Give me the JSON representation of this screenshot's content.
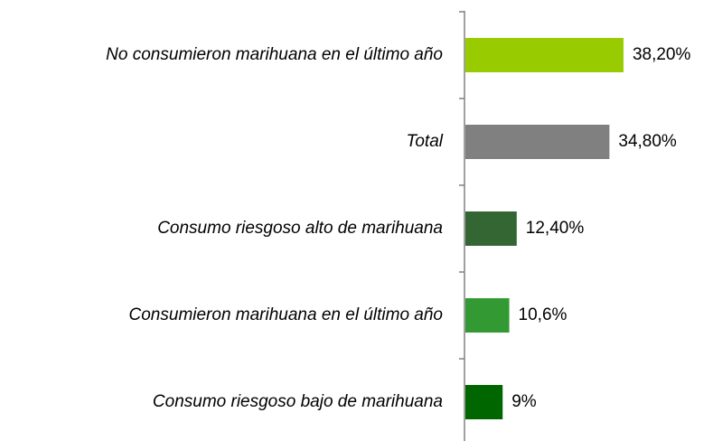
{
  "chart_data": {
    "type": "bar",
    "orientation": "horizontal",
    "categories": [
      "No consumieron marihuana en el último año",
      "Total",
      "Consumo riesgoso alto de marihuana",
      "Consumieron marihuana en el último año",
      "Consumo riesgoso bajo de marihuana"
    ],
    "values": [
      38.2,
      34.8,
      12.4,
      10.6,
      9
    ],
    "value_labels": [
      "38,20%",
      "34,80%",
      "12,40%",
      "10,6%",
      "9%"
    ],
    "colors": [
      "#99cc00",
      "#808080",
      "#336633",
      "#339933",
      "#006600"
    ]
  }
}
